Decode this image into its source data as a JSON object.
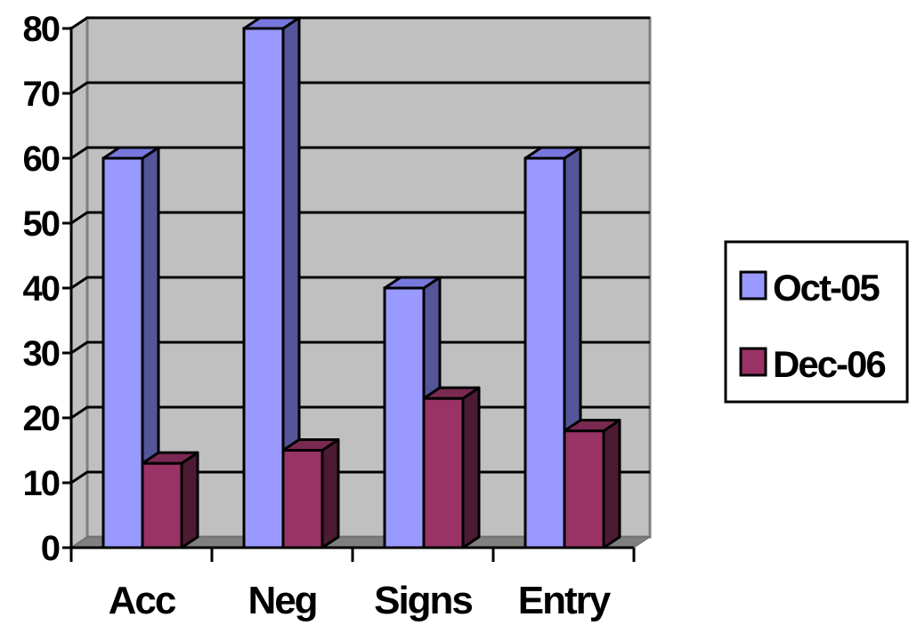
{
  "chart_data": {
    "type": "bar",
    "style": "3d-clustered-column",
    "categories": [
      "Acc",
      "Neg",
      "Signs",
      "Entry"
    ],
    "series": [
      {
        "name": "Oct-05",
        "values": [
          60,
          80,
          40,
          60
        ],
        "color": "#9999ff",
        "side_color": "#555599",
        "top_color": "#7777dd"
      },
      {
        "name": "Dec-06",
        "values": [
          13,
          15,
          23,
          18
        ],
        "color": "#993366",
        "side_color": "#4d1a33",
        "top_color": "#7a2952"
      }
    ],
    "y_ticks": [
      "0",
      "10",
      "20",
      "30",
      "40",
      "50",
      "60",
      "70",
      "80"
    ],
    "ylim": [
      0,
      80
    ],
    "grid": true,
    "legend_position": "right",
    "wall_color": "#c0c0c0",
    "floor_color": "#808080"
  }
}
